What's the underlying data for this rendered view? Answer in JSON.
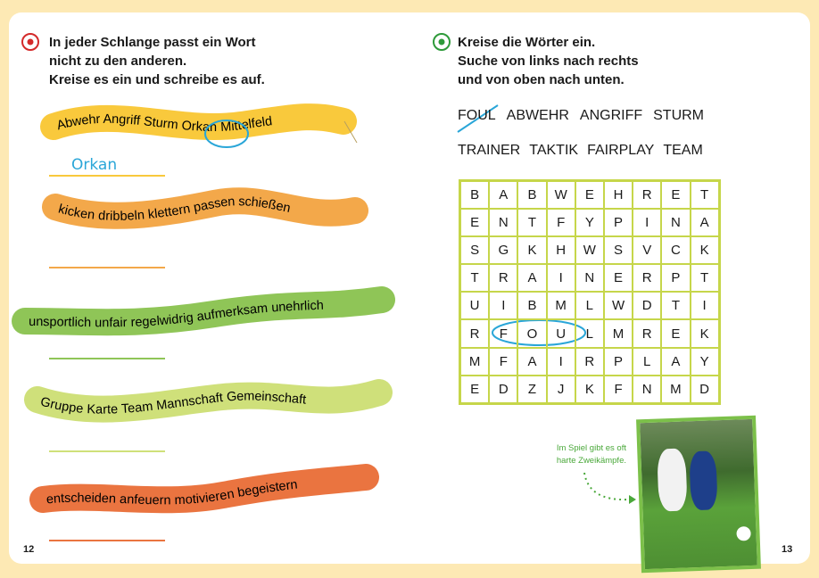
{
  "left": {
    "instruction": [
      "In jeder Schlange passt ein Wort",
      "nicht zu den anderen.",
      "Kreise es ein und schreibe es auf."
    ],
    "snakes": [
      {
        "text": "Abwehr Angriff Sturm Orkan Mittelfeld",
        "color": "#f9c93c",
        "answer": "Orkan"
      },
      {
        "text": "kicken dribbeln klettern passen schießen",
        "color": "#f3a84a",
        "answer": ""
      },
      {
        "text": "unsportlich unfair regelwidrig aufmerksam unehrlich",
        "color": "#8fc557",
        "answer": ""
      },
      {
        "text": "Gruppe Karte Team Mannschaft Gemeinschaft",
        "color": "#cfe07a",
        "answer": ""
      },
      {
        "text": "entscheiden anfeuern motivieren begeistern",
        "color": "#ea7440",
        "answer": ""
      }
    ],
    "page_number": "12"
  },
  "right": {
    "instruction": [
      "Kreise die Wörter ein.",
      "Suche von links nach rechts",
      "und von oben nach unten."
    ],
    "words_row1": [
      "FOUL",
      "ABWEHR",
      "ANGRIFF",
      "STURM"
    ],
    "words_row2": [
      "TRAINER",
      "TAKTIK",
      "FAIRPLAY",
      "TEAM"
    ],
    "grid": [
      "BABWEHRET",
      "ENTFYPINA",
      "SGKHWSVCK",
      "TRAINERPT",
      "UIBMLWDTI",
      "RFOULMREK",
      "MFAIRPLAY",
      "EDZJKFNMD"
    ],
    "photo_caption": [
      "Im Spiel gibt es oft",
      "harte Zweikämpfe."
    ],
    "page_number": "13"
  },
  "colors": {
    "accent_blue": "#2aa6d8",
    "grid_line": "#c6d64a",
    "background": "#fde9b4"
  }
}
